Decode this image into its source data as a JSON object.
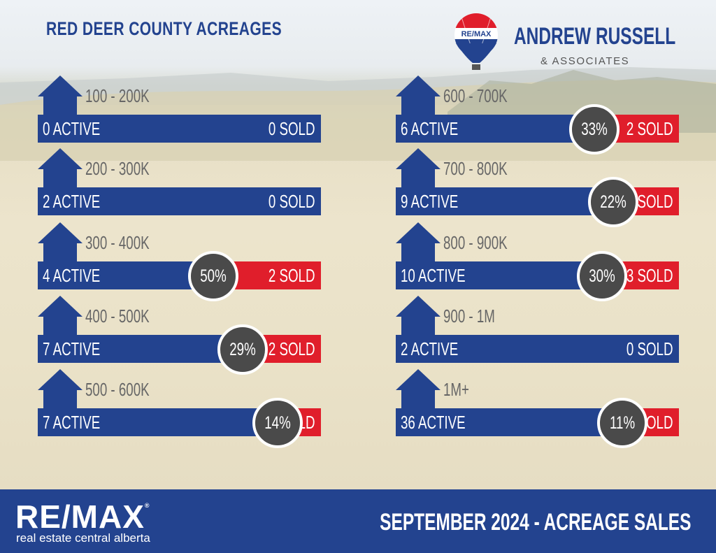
{
  "title": "RED DEER COUNTY ACREAGES",
  "brand": {
    "balloon_text": "RE/MAX",
    "name": "ANDREW RUSSELL",
    "sub": "& ASSOCIATES"
  },
  "footer": {
    "logo": "RE/MAX",
    "logo_mark": "®",
    "logo_sub": "real estate central alberta",
    "title": "SEPTEMBER 2024 - ACREAGE SALES"
  },
  "colors": {
    "blue": "#23438f",
    "red": "#e01e2b",
    "circle": "#4a4a4a"
  },
  "chart_data": {
    "type": "bar",
    "title": "RED DEER COUNTY ACREAGES",
    "categories": [
      "100 - 200K",
      "200 - 300K",
      "300 - 400K",
      "400 - 500K",
      "500 - 600K",
      "600 - 700K",
      "700 - 800K",
      "800 - 900K",
      "900 - 1M",
      "1M+"
    ],
    "series": [
      {
        "name": "ACTIVE",
        "values": [
          0,
          2,
          4,
          7,
          7,
          6,
          9,
          10,
          2,
          36
        ]
      },
      {
        "name": "SOLD",
        "values": [
          0,
          0,
          2,
          2,
          1,
          2,
          2,
          3,
          0,
          4
        ]
      }
    ],
    "rows": [
      {
        "range": "100 - 200K",
        "active": "0 ACTIVE",
        "sold": "0 SOLD",
        "ratio": null,
        "ratio_label": ""
      },
      {
        "range": "200 - 300K",
        "active": "2 ACTIVE",
        "sold": "0 SOLD",
        "ratio": null,
        "ratio_label": ""
      },
      {
        "range": "300 - 400K",
        "active": "4 ACTIVE",
        "sold": "2 SOLD",
        "ratio": 0.5,
        "ratio_label": "50%"
      },
      {
        "range": "400 - 500K",
        "active": "7 ACTIVE",
        "sold": "2 SOLD",
        "ratio": 0.29,
        "ratio_label": "29%"
      },
      {
        "range": "500 - 600K",
        "active": "7 ACTIVE",
        "sold": "1 SOLD",
        "ratio": 0.14,
        "ratio_label": "14%"
      },
      {
        "range": "600 - 700K",
        "active": "6 ACTIVE",
        "sold": "2 SOLD",
        "ratio": 0.33,
        "ratio_label": "33%"
      },
      {
        "range": "700 - 800K",
        "active": "9 ACTIVE",
        "sold": "2 SOLD",
        "ratio": 0.22,
        "ratio_label": "22%"
      },
      {
        "range": "800 - 900K",
        "active": "10 ACTIVE",
        "sold": "3 SOLD",
        "ratio": 0.3,
        "ratio_label": "30%"
      },
      {
        "range": "900 - 1M",
        "active": "2 ACTIVE",
        "sold": "0 SOLD",
        "ratio": null,
        "ratio_label": ""
      },
      {
        "range": "1M+",
        "active": "36 ACTIVE",
        "sold": "4 SOLD",
        "ratio": 0.11,
        "ratio_label": "11%"
      }
    ]
  }
}
